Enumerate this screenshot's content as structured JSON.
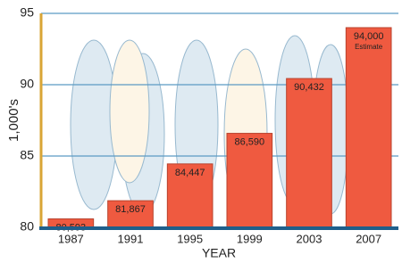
{
  "chart_data": {
    "type": "bar",
    "x_label": "YEAR",
    "y_label": "1,000's",
    "categories": [
      "1987",
      "1991",
      "1995",
      "1999",
      "2003",
      "2007"
    ],
    "values": [
      80.593,
      81.867,
      84.447,
      86.59,
      90.432,
      94.0
    ],
    "value_labels": [
      "80,593",
      "81,867",
      "84,447",
      "86,590",
      "90,432",
      "94,000"
    ],
    "annotation": "Estimate",
    "color": "#ef5a40",
    "ylim": [
      80,
      95
    ],
    "yticks": [
      80,
      85,
      90,
      95
    ],
    "grid": true
  }
}
